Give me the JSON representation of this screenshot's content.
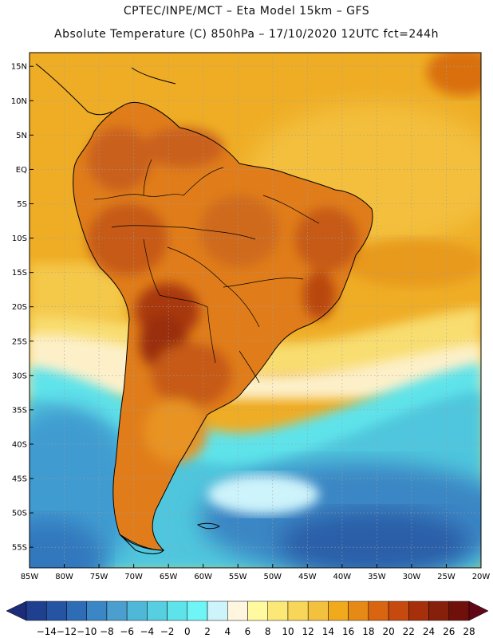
{
  "header": {
    "line1": "CPTEC/INPE/MCT –  Eta Model 15km – GFS",
    "line2": "Absolute Temperature (C) 850hPa – 17/10/2020 12UTC fct=244h"
  },
  "map": {
    "lat_labels": [
      "15N",
      "10N",
      "5N",
      "EQ",
      "5S",
      "10S",
      "15S",
      "20S",
      "25S",
      "30S",
      "35S",
      "40S",
      "45S",
      "50S",
      "55S"
    ],
    "lon_labels": [
      "85W",
      "80W",
      "75W",
      "70W",
      "65W",
      "60W",
      "55W",
      "50W",
      "45W",
      "40W",
      "35W",
      "30W",
      "25W",
      "20W"
    ],
    "lat_range": [
      -58,
      17
    ],
    "lon_range": [
      -85,
      -20
    ]
  },
  "colorbar": {
    "labels": [
      "-14",
      "-12",
      "-10",
      "-8",
      "-6",
      "-4",
      "-2",
      "0",
      "2",
      "4",
      "6",
      "8",
      "10",
      "12",
      "14",
      "16",
      "18",
      "20",
      "22",
      "24",
      "26",
      "28"
    ],
    "colors": [
      "#1f3f8f",
      "#2554a3",
      "#2e6db6",
      "#3b86c4",
      "#4a9fcf",
      "#4fb8d8",
      "#56cfe0",
      "#5fe3ea",
      "#6ff5f5",
      "#cdf3fb",
      "#fff6e0",
      "#fffaa0",
      "#fbe876",
      "#f8d659",
      "#f4c13f",
      "#f0aa1c",
      "#e68a15",
      "#d96510",
      "#c64a0d",
      "#a6300b",
      "#86200a",
      "#70100a"
    ],
    "under_color": "#1c2c78",
    "over_color": "#600818"
  },
  "colors": {
    "ocean_warm": "#efad25",
    "land_hot": "#d06a1d",
    "land_hottest": "#a2350c",
    "cold_water": "#4fc6dd"
  }
}
